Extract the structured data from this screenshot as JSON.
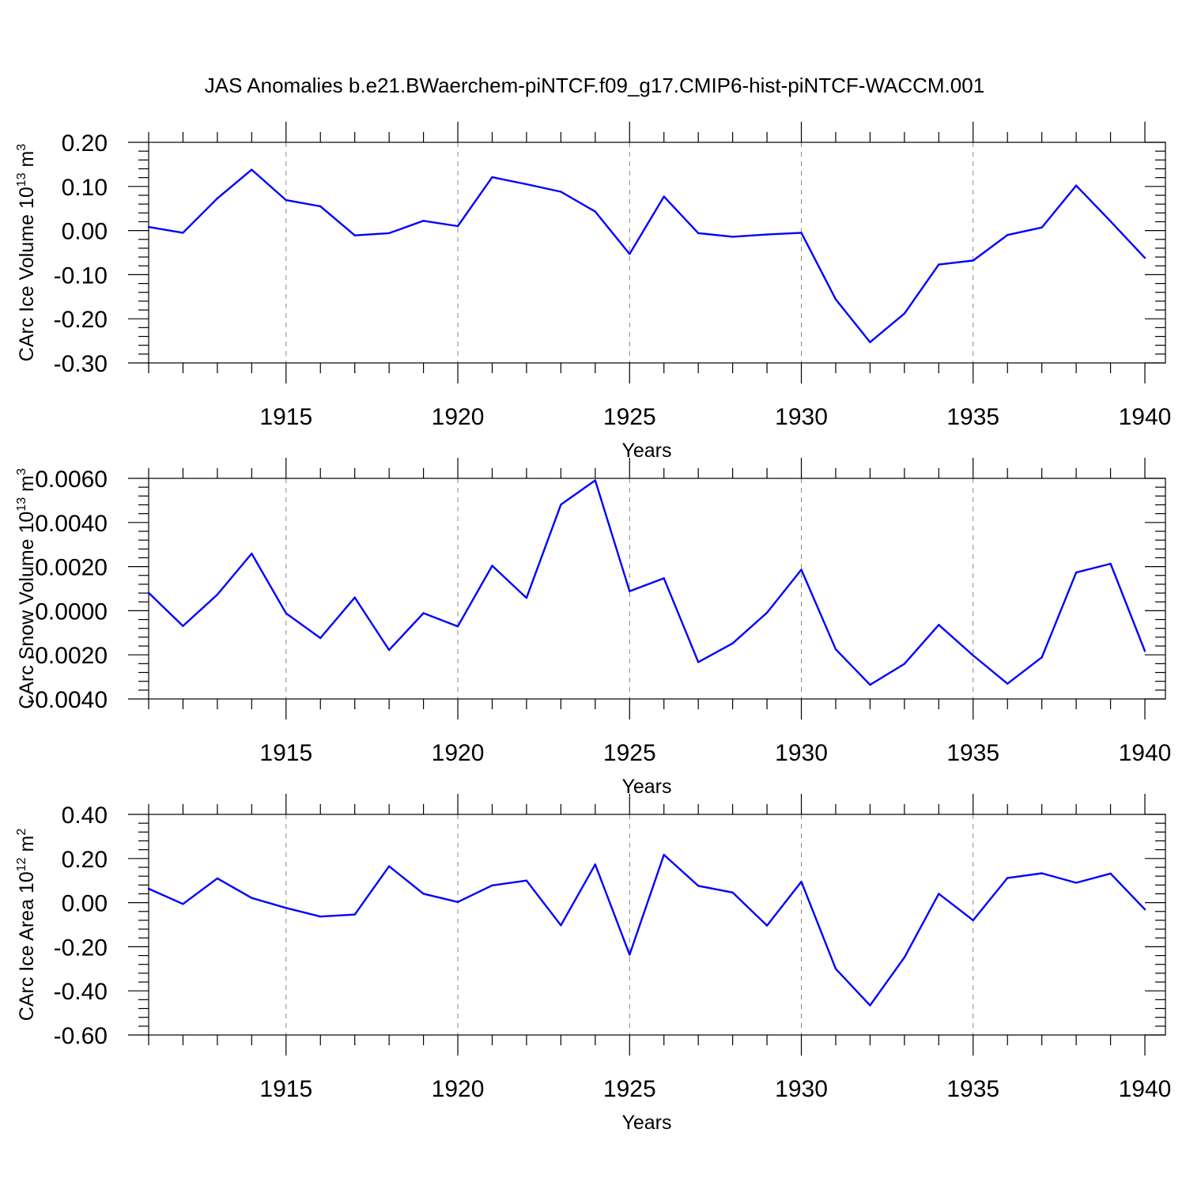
{
  "title": "JAS Anomalies b.e21.BWaerchem-piNTCF.f09_g17.CMIP6-hist-piNTCF-WACCM.001",
  "colors": {
    "line": "#0000ff",
    "grid": "#888888",
    "axis": "#000000"
  },
  "chart_data": [
    {
      "type": "line",
      "name": "ice-volume",
      "ylabel": "CArc Ice Volume 10",
      "ylabel_exp": "13",
      "ylabel_unit": " m",
      "ylabel_unit_exp": "3",
      "xlabel": "Years",
      "xlim": [
        1911,
        1940
      ],
      "ylim": [
        -0.3,
        0.2
      ],
      "yticks": [
        -0.3,
        -0.2,
        -0.1,
        0.0,
        0.1,
        0.2
      ],
      "ytick_labels": [
        "-0.30",
        "-0.20",
        "-0.10",
        "0.00",
        "0.10",
        "0.20"
      ],
      "yminor": 0.02,
      "xticks": [
        1915,
        1920,
        1925,
        1930,
        1935,
        1940
      ],
      "xtick_labels": [
        "1915",
        "1920",
        "1925",
        "1930",
        "1935",
        "1940"
      ],
      "x": [
        1911,
        1912,
        1913,
        1914,
        1915,
        1916,
        1917,
        1918,
        1919,
        1920,
        1921,
        1922,
        1923,
        1924,
        1925,
        1926,
        1927,
        1928,
        1929,
        1930,
        1931,
        1932,
        1933,
        1934,
        1935,
        1936,
        1937,
        1938,
        1939,
        1940
      ],
      "values": [
        0.008,
        -0.005,
        0.073,
        0.138,
        0.069,
        0.055,
        -0.011,
        -0.006,
        0.022,
        0.01,
        0.121,
        0.105,
        0.088,
        0.043,
        -0.053,
        0.077,
        -0.006,
        -0.014,
        -0.009,
        -0.005,
        -0.156,
        -0.253,
        -0.188,
        -0.077,
        -0.068,
        -0.01,
        0.007,
        0.102,
        0.021,
        -0.062
      ]
    },
    {
      "type": "line",
      "name": "snow-volume",
      "ylabel": "CArc Snow Volume 10",
      "ylabel_exp": "13",
      "ylabel_unit": " m",
      "ylabel_unit_exp": "3",
      "xlabel": "Years",
      "xlim": [
        1911,
        1940
      ],
      "ylim": [
        -0.004,
        0.006
      ],
      "yticks": [
        -0.004,
        -0.002,
        0.0,
        0.002,
        0.004,
        0.006
      ],
      "ytick_labels": [
        "-0.0040",
        "-0.0020",
        "0.0000",
        "0.0020",
        "0.0040",
        "0.0060"
      ],
      "yminor": 0.0004,
      "xticks": [
        1915,
        1920,
        1925,
        1930,
        1935,
        1940
      ],
      "xtick_labels": [
        "1915",
        "1920",
        "1925",
        "1930",
        "1935",
        "1940"
      ],
      "x": [
        1911,
        1912,
        1913,
        1914,
        1915,
        1916,
        1917,
        1918,
        1919,
        1920,
        1921,
        1922,
        1923,
        1924,
        1925,
        1926,
        1927,
        1928,
        1929,
        1930,
        1931,
        1932,
        1933,
        1934,
        1935,
        1936,
        1937,
        1938,
        1939,
        1940
      ],
      "values": [
        0.00081,
        -0.00069,
        0.00073,
        0.00259,
        -0.00012,
        -0.00124,
        0.0006,
        -0.00178,
        -0.00011,
        -0.00071,
        0.00204,
        0.00058,
        0.00481,
        0.00591,
        0.00088,
        0.00147,
        -0.00233,
        -0.00148,
        -9e-05,
        0.00186,
        -0.00175,
        -0.00336,
        -0.00241,
        -0.00064,
        -0.00203,
        -0.00331,
        -0.00211,
        0.00173,
        0.00213,
        -0.00183
      ]
    },
    {
      "type": "line",
      "name": "ice-area",
      "ylabel": "CArc Ice Area 10",
      "ylabel_exp": "12",
      "ylabel_unit": " m",
      "ylabel_unit_exp": "2",
      "xlabel": "Years",
      "xlim": [
        1911,
        1940
      ],
      "ylim": [
        -0.6,
        0.4
      ],
      "yticks": [
        -0.6,
        -0.4,
        -0.2,
        0.0,
        0.2,
        0.4
      ],
      "ytick_labels": [
        "-0.60",
        "-0.40",
        "-0.20",
        "0.00",
        "0.20",
        "0.40"
      ],
      "yminor": 0.04,
      "xticks": [
        1915,
        1920,
        1925,
        1930,
        1935,
        1940
      ],
      "xtick_labels": [
        "1915",
        "1920",
        "1925",
        "1930",
        "1935",
        "1940"
      ],
      "x": [
        1911,
        1912,
        1913,
        1914,
        1915,
        1916,
        1917,
        1918,
        1919,
        1920,
        1921,
        1922,
        1923,
        1924,
        1925,
        1926,
        1927,
        1928,
        1929,
        1930,
        1931,
        1932,
        1933,
        1934,
        1935,
        1936,
        1937,
        1938,
        1939,
        1940
      ],
      "values": [
        0.063,
        -0.006,
        0.11,
        0.021,
        -0.024,
        -0.063,
        -0.054,
        0.165,
        0.04,
        0.003,
        0.078,
        0.1,
        -0.103,
        0.173,
        -0.236,
        0.217,
        0.076,
        0.046,
        -0.104,
        0.095,
        -0.3,
        -0.466,
        -0.248,
        0.04,
        -0.08,
        0.112,
        0.133,
        0.09,
        0.132,
        -0.031
      ]
    }
  ]
}
